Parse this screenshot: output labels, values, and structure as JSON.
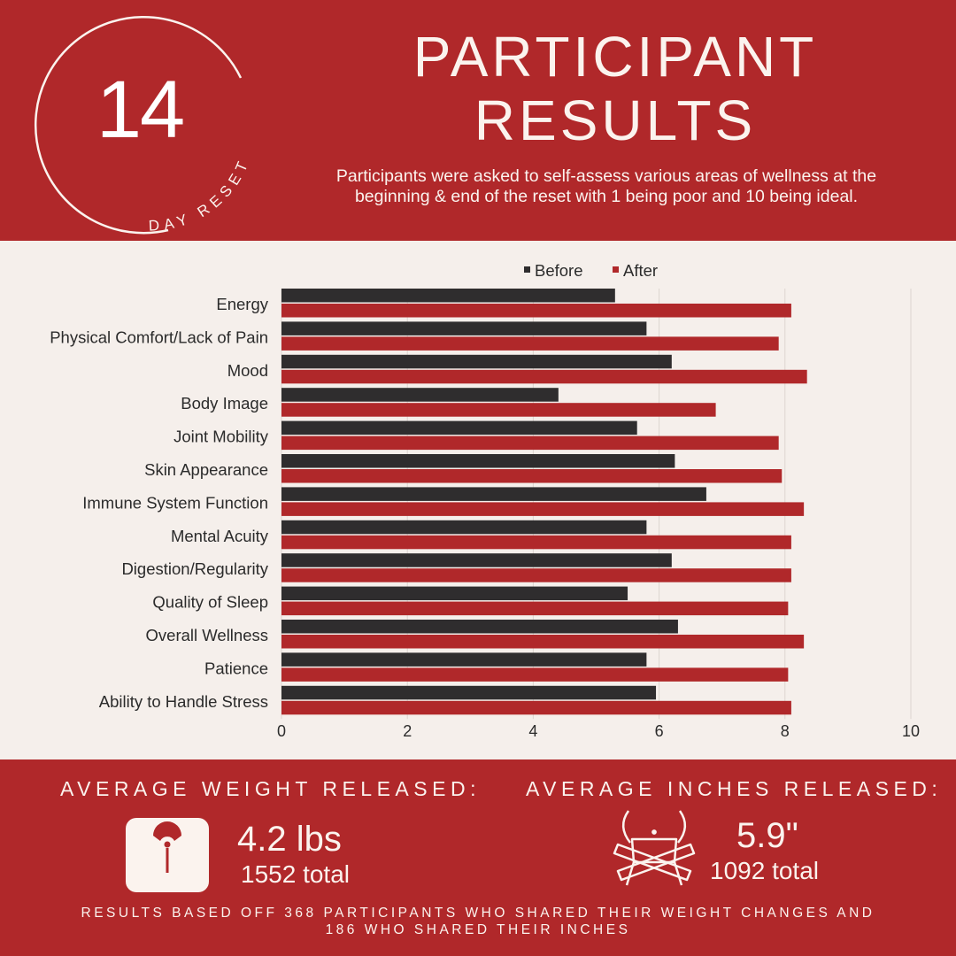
{
  "badge": {
    "number": "14",
    "caption": "DAY RESET"
  },
  "header": {
    "title_line1": "PARTICIPANT",
    "title_line2": "RESULTS",
    "subtitle_line1": "Participants were asked to self-assess various areas of wellness at the",
    "subtitle_line2": "beginning & end of the reset with 1 being poor and 10 being ideal."
  },
  "chart_data": {
    "type": "bar",
    "orientation": "horizontal",
    "categories": [
      "Energy",
      "Physical Comfort/Lack of Pain",
      "Mood",
      "Body Image",
      "Joint Mobility",
      "Skin Appearance",
      "Immune System Function",
      "Mental Acuity",
      "Digestion/Regularity",
      "Quality of Sleep",
      "Overall Wellness",
      "Patience",
      "Ability to Handle Stress"
    ],
    "series": [
      {
        "name": "Before",
        "color": "#2f2d2e",
        "values": [
          5.3,
          5.8,
          6.2,
          4.4,
          5.65,
          6.25,
          6.75,
          5.8,
          6.2,
          5.5,
          6.3,
          5.8,
          5.95
        ]
      },
      {
        "name": "After",
        "color": "#b0282a",
        "values": [
          8.1,
          7.9,
          8.35,
          6.9,
          7.9,
          7.95,
          8.3,
          8.1,
          8.1,
          8.05,
          8.3,
          8.05,
          8.1
        ]
      }
    ],
    "xlim": [
      0,
      10
    ],
    "xticks": [
      0,
      2,
      4,
      6,
      8,
      10
    ],
    "grid": true,
    "legend": "top-center"
  },
  "stats": {
    "weight": {
      "label": "AVERAGE WEIGHT RELEASED:",
      "value": "4.2 lbs",
      "total": "1552 total",
      "icon": "scale-icon"
    },
    "inches": {
      "label": "AVERAGE INCHES RELEASED:",
      "value": "5.9\"",
      "total": "1092 total",
      "icon": "waist-measure-icon"
    }
  },
  "footer": {
    "note_line1": "RESULTS BASED OFF 368 PARTICIPANTS WHO SHARED THEIR WEIGHT CHANGES AND",
    "note_line2": "186 WHO SHARED THEIR INCHES"
  }
}
